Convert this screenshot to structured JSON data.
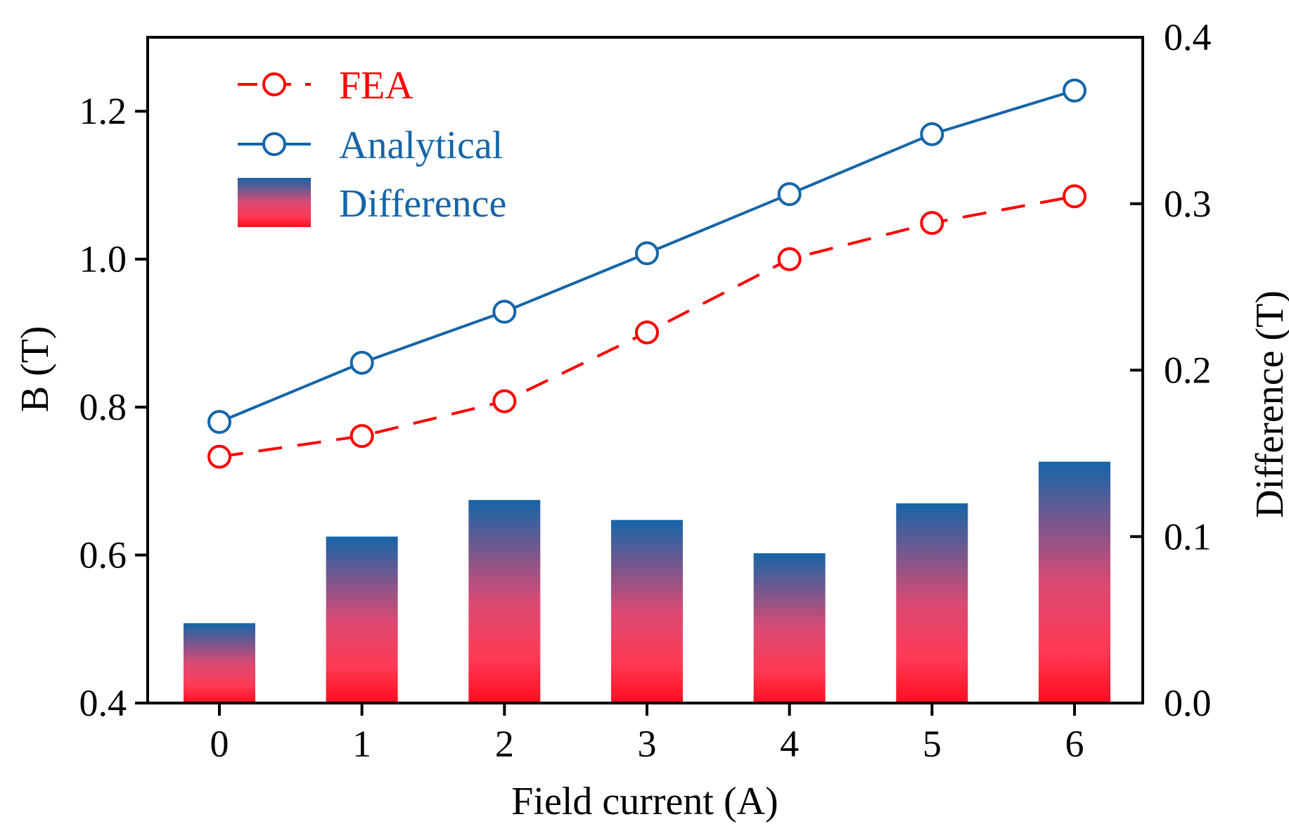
{
  "chart_data": {
    "type": "bar+line",
    "categories": [
      "0",
      "1",
      "2",
      "3",
      "4",
      "5",
      "6"
    ],
    "x": [
      0,
      1,
      2,
      3,
      4,
      5,
      6
    ],
    "xlabel": "Field current (A)",
    "ylabel": "B (T)",
    "y2label": "Difference (T)",
    "ylim": [
      0.4,
      1.3
    ],
    "y2lim": [
      0.0,
      0.4
    ],
    "yticks": [
      "0.4",
      "0.6",
      "0.8",
      "1.0",
      "1.2"
    ],
    "y2ticks": [
      "0.0",
      "0.1",
      "0.2",
      "0.3",
      "0.4"
    ],
    "series": [
      {
        "name": "FEA",
        "type": "line",
        "style": "dashed",
        "color": "#ff0000",
        "axis": "left",
        "values": [
          0.733,
          0.761,
          0.808,
          0.901,
          1.0,
          1.049,
          1.085
        ]
      },
      {
        "name": "Analytical",
        "type": "line",
        "style": "solid",
        "color": "#1565a8",
        "axis": "left",
        "values": [
          0.78,
          0.86,
          0.929,
          1.008,
          1.088,
          1.169,
          1.228
        ]
      },
      {
        "name": "Difference",
        "type": "bar",
        "axis": "right",
        "color_top": "#1565a8",
        "color_bottom": "#ff0d1f",
        "values": [
          0.048,
          0.1,
          0.122,
          0.11,
          0.09,
          0.12,
          0.145
        ]
      }
    ],
    "legend": {
      "position": "top-left",
      "entries": [
        "FEA",
        "Analytical",
        "Difference"
      ],
      "colors": [
        "#ff0000",
        "#1565a8",
        "#1565a8"
      ]
    }
  }
}
